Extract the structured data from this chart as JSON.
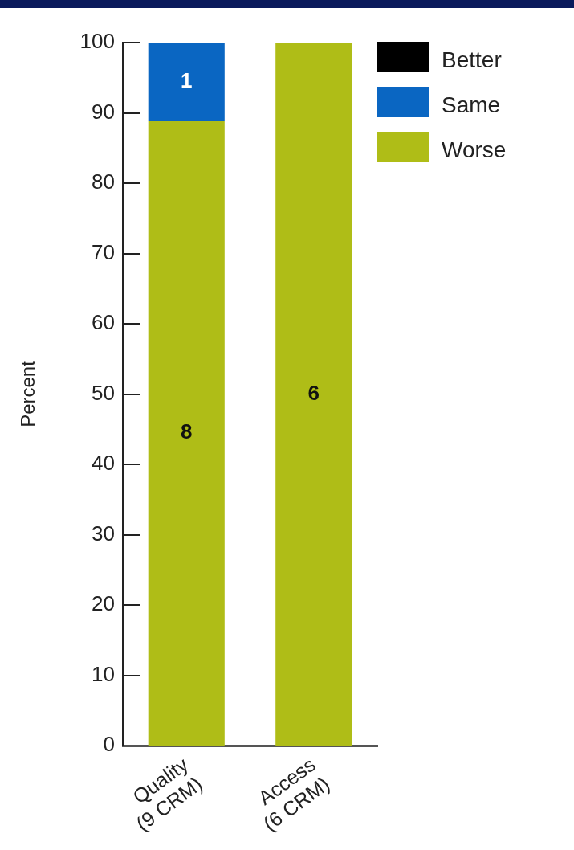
{
  "chart_data": {
    "type": "bar",
    "stacked": true,
    "categories": [
      "Quality\n(9 CRM)",
      "Access\n(6 CRM)"
    ],
    "ylabel": "Percent",
    "ylim": [
      0,
      100
    ],
    "yticks": [
      0,
      10,
      20,
      30,
      40,
      50,
      60,
      70,
      80,
      90,
      100
    ],
    "legend": "top right",
    "series": [
      {
        "name": "Worse",
        "color": "#afbd17",
        "values": [
          88.9,
          100
        ]
      },
      {
        "name": "Same",
        "color": "#0a66c2",
        "values": [
          11.1,
          0
        ]
      },
      {
        "name": "Better",
        "color": "#000000",
        "values": [
          0,
          0
        ]
      }
    ],
    "annotations": [
      "1",
      "8",
      "6"
    ]
  }
}
